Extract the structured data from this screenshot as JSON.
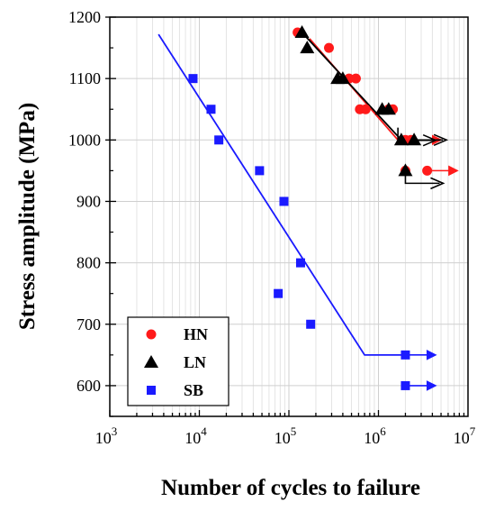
{
  "chart_data": {
    "type": "scatter",
    "title": "",
    "xlabel": "Number of cycles to failure",
    "ylabel": "Stress amplitude (MPa)",
    "xscale": "log",
    "xlim": [
      1000,
      10000000
    ],
    "ylim": [
      550,
      1200
    ],
    "xticks": [
      {
        "value": 1000,
        "base": "10",
        "exp": "3"
      },
      {
        "value": 10000,
        "base": "10",
        "exp": "4"
      },
      {
        "value": 100000,
        "base": "10",
        "exp": "5"
      },
      {
        "value": 1000000,
        "base": "10",
        "exp": "6"
      },
      {
        "value": 10000000,
        "base": "10",
        "exp": "7"
      }
    ],
    "yticks": [
      600,
      700,
      800,
      900,
      1000,
      1100,
      1200
    ],
    "grid": true,
    "legend_position": "bottom-left",
    "series": [
      {
        "name": "HN",
        "marker": "circle",
        "color": "#ff1a1a",
        "points": [
          [
            125000,
            1175
          ],
          [
            280000,
            1150
          ],
          [
            470000,
            1100
          ],
          [
            560000,
            1100
          ],
          [
            620000,
            1050
          ],
          [
            720000,
            1050
          ],
          [
            1300000,
            1050
          ],
          [
            1450000,
            1050
          ],
          [
            2000000,
            1000
          ],
          [
            2300000,
            1000
          ],
          [
            2000000,
            950
          ],
          [
            3500000,
            950
          ]
        ],
        "fit_line": [
          [
            170000,
            1165
          ],
          [
            1650000,
            1000
          ]
        ],
        "runouts": [
          {
            "x": 2300000,
            "y": 1000
          },
          {
            "x": 3500000,
            "y": 950
          }
        ]
      },
      {
        "name": "LN",
        "marker": "triangle",
        "color": "#000000",
        "points": [
          [
            140000,
            1175
          ],
          [
            160000,
            1150
          ],
          [
            350000,
            1100
          ],
          [
            400000,
            1100
          ],
          [
            1100000,
            1050
          ],
          [
            1300000,
            1050
          ],
          [
            1800000,
            1000
          ],
          [
            2500000,
            1000
          ],
          [
            2000000,
            950
          ]
        ],
        "fit_line": [
          [
            140000,
            1175
          ],
          [
            1800000,
            1000
          ]
        ],
        "runouts": [
          {
            "x": 1650000,
            "y": 1020,
            "kind": "bent"
          },
          {
            "x": 2500000,
            "y": 1000
          },
          {
            "x": 2000000,
            "y": 950,
            "kind": "bent"
          }
        ]
      },
      {
        "name": "SB",
        "marker": "square",
        "color": "#1a1aff",
        "points": [
          [
            8500,
            1100
          ],
          [
            13500,
            1050
          ],
          [
            16500,
            1000
          ],
          [
            47000,
            950
          ],
          [
            88000,
            900
          ],
          [
            135000,
            800
          ],
          [
            76000,
            750
          ],
          [
            175000,
            700
          ],
          [
            2000000,
            650
          ],
          [
            2000000,
            600
          ]
        ],
        "fit_line": [
          [
            3500,
            1172
          ],
          [
            700000,
            650
          ],
          [
            2000000,
            650
          ]
        ],
        "runouts": [
          {
            "x": 2000000,
            "y": 650
          },
          {
            "x": 2000000,
            "y": 600
          }
        ]
      }
    ]
  }
}
